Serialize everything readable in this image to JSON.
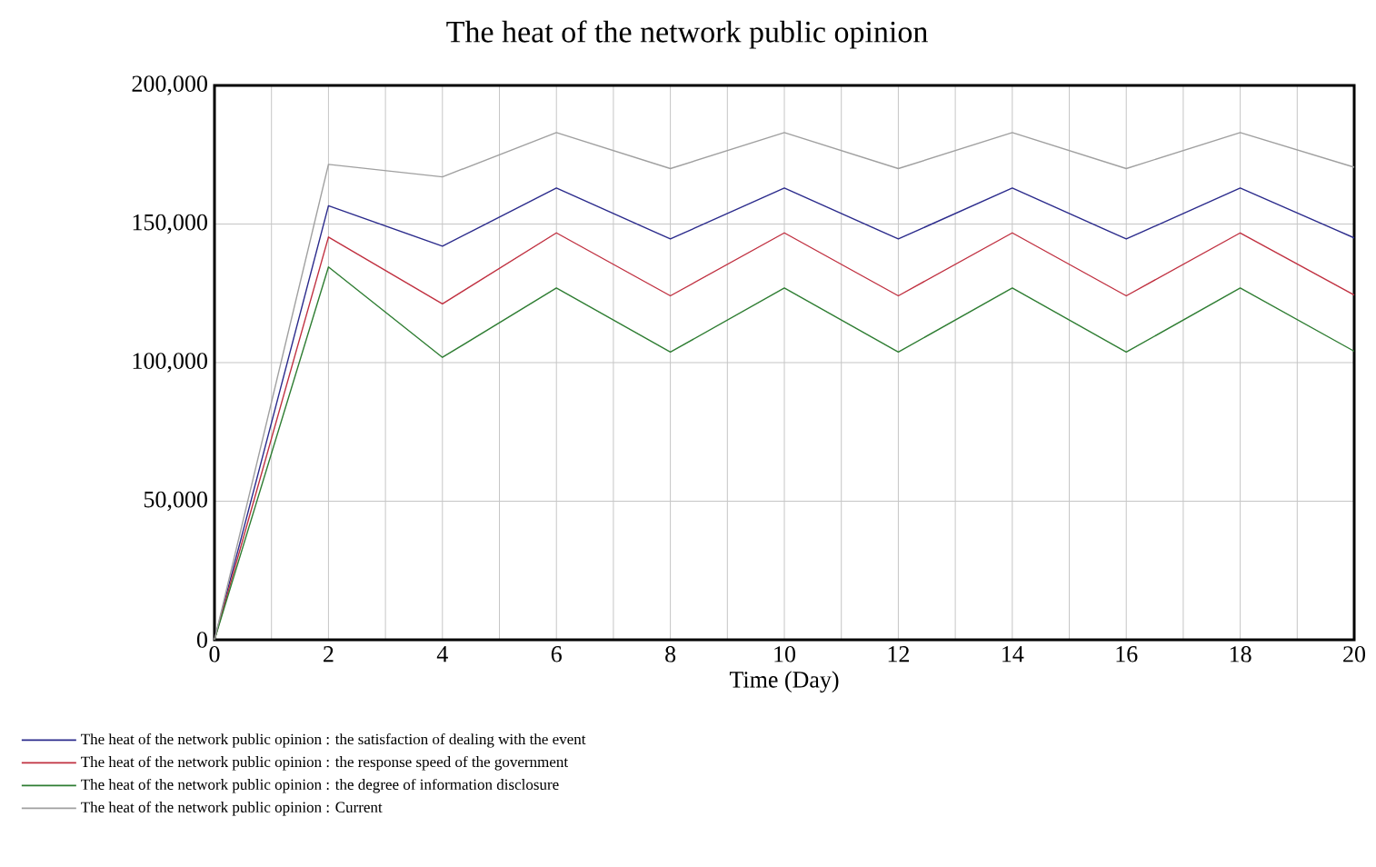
{
  "chart_data": {
    "type": "line",
    "title": "The heat of the network public opinion",
    "xlabel": "Time (Day)",
    "x": [
      0,
      2,
      4,
      6,
      8,
      10,
      12,
      14,
      16,
      18,
      20
    ],
    "series": [
      {
        "name": "The heat of the network public opinion : the satisfaction of dealing with the event",
        "color": "#2b2b8c",
        "values": [
          0,
          156600,
          142000,
          163000,
          144600,
          163000,
          144600,
          163000,
          144600,
          163000,
          145000
        ]
      },
      {
        "name": "The heat of the network public opinion : the response speed of the government",
        "color": "#c03040",
        "values": [
          0,
          145300,
          121200,
          146800,
          124100,
          146800,
          124100,
          146800,
          124100,
          146800,
          124400
        ]
      },
      {
        "name": "The heat of the network public opinion : the degree of information disclosure",
        "color": "#2e7d32",
        "values": [
          0,
          134500,
          101900,
          126900,
          103800,
          126900,
          103800,
          126900,
          103800,
          126900,
          104100
        ]
      },
      {
        "name": "The heat of the network public opinion : Current",
        "color": "#a0a0a0",
        "values": [
          0,
          171500,
          167000,
          183000,
          170000,
          183000,
          170000,
          183000,
          170000,
          183000,
          170500
        ]
      }
    ],
    "xlim": [
      0,
      20
    ],
    "xticks": [
      0,
      {
        "value": 1,
        "label": null
      },
      2,
      {
        "value": 3,
        "label": null
      },
      4,
      {
        "value": 5,
        "label": null
      },
      6,
      {
        "value": 7,
        "label": null
      },
      8,
      {
        "value": 9,
        "label": null
      },
      10,
      {
        "value": 11,
        "label": null
      },
      12,
      {
        "value": 13,
        "label": null
      },
      14,
      {
        "value": 15,
        "label": null
      },
      16,
      {
        "value": 17,
        "label": null
      },
      18,
      {
        "value": 19,
        "label": null
      },
      20
    ],
    "ylim": [
      0,
      200000
    ],
    "yticks": [
      0,
      {
        "value": 50000,
        "label": "50,000"
      },
      {
        "value": 100000,
        "label": "100,000"
      },
      {
        "value": 150000,
        "label": "150,000"
      },
      {
        "value": 200000,
        "label": "200,000"
      }
    ],
    "grid": true,
    "legend": "bottom",
    "marker": "none",
    "line_style": "solid"
  }
}
